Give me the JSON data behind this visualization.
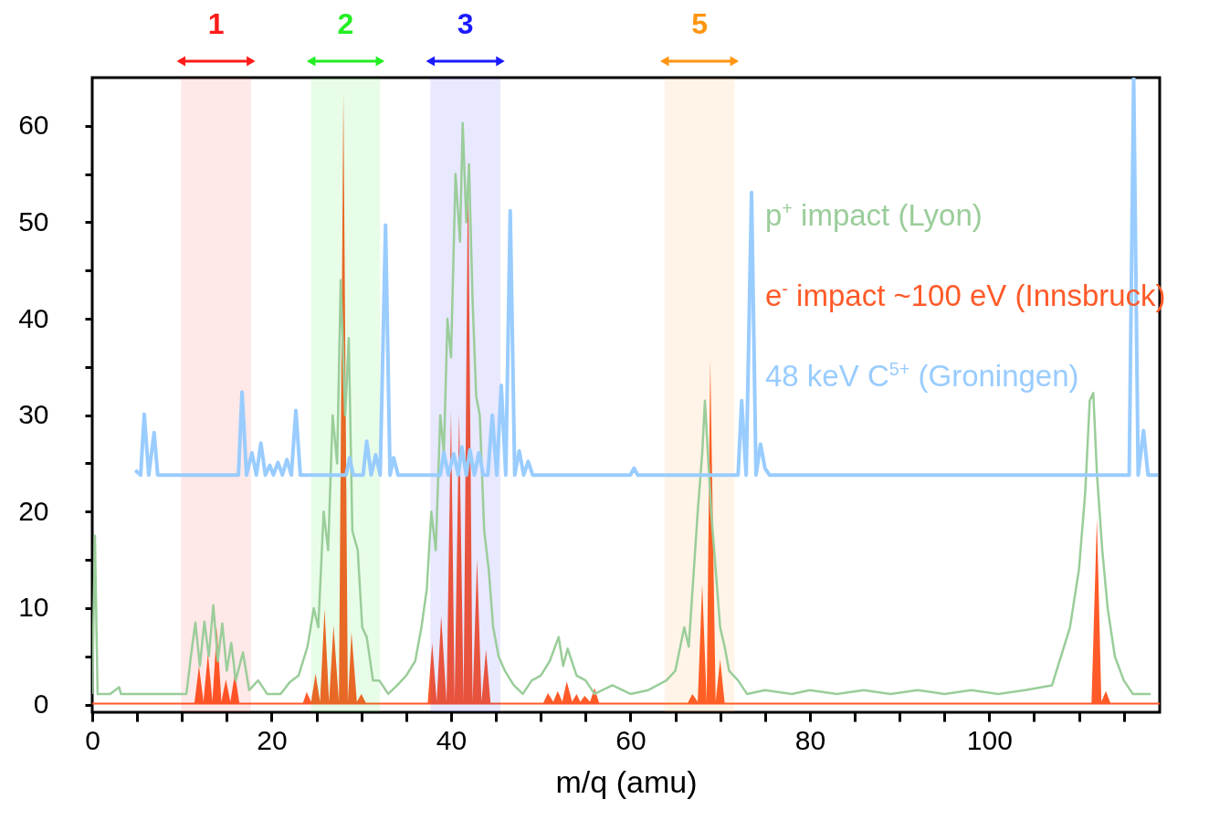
{
  "chart_data": {
    "type": "line",
    "xlabel": "m/q (amu)",
    "xlim": [
      0,
      119
    ],
    "ylim": [
      -0.8,
      65
    ],
    "xticks": [
      0,
      {
        "value": 5,
        "label": null
      },
      {
        "value": 10,
        "label": null
      },
      {
        "value": 15,
        "label": null
      },
      20,
      {
        "value": 25,
        "label": null
      },
      {
        "value": 30,
        "label": null
      },
      {
        "value": 35,
        "label": null
      },
      40,
      {
        "value": 45,
        "label": null
      },
      {
        "value": 50,
        "label": null
      },
      {
        "value": 55,
        "label": null
      },
      60,
      {
        "value": 65,
        "label": null
      },
      {
        "value": 70,
        "label": null
      },
      {
        "value": 75,
        "label": null
      },
      80,
      {
        "value": 85,
        "label": null
      },
      {
        "value": 90,
        "label": null
      },
      {
        "value": 95,
        "label": null
      },
      100,
      {
        "value": 105,
        "label": null
      },
      {
        "value": 110,
        "label": null
      },
      {
        "value": 115,
        "label": null
      }
    ],
    "yticks": [
      0,
      {
        "value": 5,
        "label": null
      },
      10,
      {
        "value": 15,
        "label": null
      },
      20,
      {
        "value": 25,
        "label": null
      },
      30,
      {
        "value": 35,
        "label": null
      },
      40,
      {
        "value": 45,
        "label": null
      },
      50,
      {
        "value": 55,
        "label": null
      },
      60
    ],
    "legend": "top right",
    "grid": false,
    "series": [
      {
        "name": "p$^{+}$ impact (Lyon)",
        "color": "#9acd9a",
        "x": [
          0,
          0.3,
          0.6,
          2,
          3,
          3.2,
          6,
          9,
          10.5,
          11,
          11.5,
          12,
          12.5,
          13,
          13.5,
          14,
          14.5,
          15,
          15.5,
          16,
          16.8,
          17.5,
          18.5,
          19.5,
          21,
          22,
          23,
          24,
          24.7,
          25.2,
          25.8,
          26.3,
          26.8,
          27.3,
          27.7,
          28.2,
          28.6,
          29,
          29.6,
          30.1,
          30.6,
          31.3,
          32,
          33,
          34,
          35,
          36,
          36.7,
          37.3,
          37.8,
          38.3,
          38.8,
          39.2,
          39.6,
          40,
          40.5,
          41,
          41.3,
          41.7,
          42,
          42.4,
          42.8,
          43.2,
          43.7,
          44.2,
          44.7,
          45.3,
          46,
          47,
          48,
          49,
          50,
          51,
          52,
          52.5,
          53,
          54,
          55,
          56,
          58,
          60,
          62,
          64,
          65,
          66,
          66.5,
          67,
          67.5,
          68,
          68.3,
          68.7,
          69,
          69.5,
          70,
          70.5,
          71,
          72,
          73,
          75,
          78,
          80,
          83,
          86,
          89,
          92,
          95,
          98,
          101,
          104,
          107,
          108,
          109,
          110,
          110.7,
          111.2,
          111.6,
          112,
          112.6,
          113.2,
          114,
          115,
          116,
          118
        ],
        "values": [
          1.1,
          17.5,
          1.1,
          1.1,
          1.8,
          1.1,
          1.1,
          1.1,
          1.1,
          5,
          8.5,
          4,
          8.6,
          5,
          10.3,
          4.5,
          8.4,
          3.5,
          6.4,
          2.5,
          5.4,
          1.5,
          2.5,
          1.1,
          1.1,
          2.3,
          3,
          6,
          10,
          8,
          20,
          16,
          30,
          25,
          44,
          30,
          38,
          18,
          16,
          8,
          7,
          2.5,
          2.5,
          1.1,
          2,
          3,
          4.5,
          8,
          12,
          20,
          16,
          30,
          26,
          40,
          36,
          55,
          48,
          60.3,
          50,
          56,
          42,
          32,
          30,
          18,
          14,
          8,
          5,
          3.5,
          2,
          1.1,
          2.5,
          3,
          4.5,
          7,
          4,
          5.8,
          3,
          2.5,
          1.1,
          2,
          1.1,
          1.5,
          2.5,
          3.5,
          8,
          6,
          13,
          20,
          26,
          31.5,
          25,
          20,
          14,
          8,
          6,
          3.5,
          2.5,
          1.1,
          1.5,
          1.1,
          1.5,
          1.1,
          1.5,
          1.1,
          1.5,
          1.1,
          1.5,
          1.1,
          1.5,
          2,
          5,
          8,
          14,
          22,
          31.5,
          32.3,
          24,
          16,
          10,
          5,
          2.5,
          1.1,
          1.1
        ]
      },
      {
        "name": "e$^{-}$ impact  ~100 eV (Innsbruck)",
        "type": "area",
        "color": "#ff5a28",
        "x": [
          0,
          11.4,
          11.9,
          12.4,
          12.9,
          13.4,
          13.9,
          14.4,
          14.9,
          15.4,
          15.9,
          16.4,
          23.5,
          23.9,
          24.4,
          24.9,
          25.4,
          25.9,
          26.4,
          26.9,
          27.5,
          28,
          28.5,
          28.9,
          29.5,
          30,
          30.5,
          37.4,
          37.9,
          38.4,
          38.9,
          39.5,
          40,
          40.4,
          40.9,
          41.4,
          41.9,
          42.4,
          42.9,
          43.4,
          43.9,
          44.4,
          50.3,
          50.8,
          51.4,
          51.9,
          52.4,
          52.9,
          53.5,
          54,
          54.4,
          54.9,
          55.5,
          56,
          56.5,
          66.4,
          66.9,
          67.5,
          68,
          68.5,
          68.9,
          69.5,
          70,
          70.5,
          111.4,
          112,
          112.5,
          113,
          113.5,
          119
        ],
        "values": [
          0.2,
          0.2,
          4,
          0.3,
          5.3,
          0.3,
          8,
          0.3,
          2.6,
          0.3,
          3.2,
          0.2,
          0.2,
          1.3,
          0.3,
          3.2,
          0.3,
          9.9,
          0.3,
          8.2,
          0.3,
          63.6,
          0.3,
          7.5,
          0.3,
          1.1,
          0.2,
          0.2,
          6.4,
          0.3,
          9.2,
          0.3,
          30.5,
          0.3,
          30.2,
          0.3,
          56.6,
          0.3,
          15.1,
          0.3,
          5.7,
          0.2,
          0.2,
          1.2,
          0.3,
          1.4,
          0.3,
          2.4,
          0.3,
          1.1,
          0.3,
          0.9,
          0.3,
          1.7,
          0.2,
          0.2,
          1.1,
          0.3,
          12.5,
          0.3,
          35.7,
          0.3,
          4.7,
          0.2,
          0.2,
          19.3,
          0.3,
          1.4,
          0.2,
          0.2
        ]
      },
      {
        "name": "48 keV C$^{5+}$ (Groningen)",
        "color": "#99ccff",
        "x": [
          4.8,
          5.4,
          5.8,
          6.3,
          6.9,
          7.3,
          16.3,
          16.7,
          17.2,
          17.8,
          18.3,
          18.8,
          19.3,
          19.8,
          20.2,
          20.7,
          21.2,
          21.7,
          22.2,
          22.7,
          23.2,
          28.3,
          28.7,
          29.1,
          30.2,
          30.6,
          31.1,
          31.6,
          32.1,
          32.7,
          33.2,
          33.6,
          34.1,
          38.8,
          39.2,
          39.7,
          40.3,
          40.8,
          41.2,
          41.7,
          42.1,
          42.6,
          43.1,
          43.6,
          44.1,
          44.6,
          45.1,
          45.6,
          46.1,
          46.6,
          47.1,
          47.6,
          48.1,
          48.6,
          49.1,
          60,
          60.4,
          60.8,
          72,
          72.4,
          72.9,
          73.5,
          74,
          74.5,
          75,
          75.5,
          115.6,
          116.1,
          116.6,
          117.2,
          117.7,
          118.8
        ],
        "values": [
          24.3,
          23.8,
          30.1,
          23.8,
          28.2,
          23.8,
          23.8,
          32.4,
          23.8,
          26.1,
          23.8,
          27.1,
          23.8,
          24.8,
          23.8,
          25.1,
          23.8,
          25.4,
          23.8,
          30.5,
          23.8,
          23.8,
          25.6,
          23.8,
          23.8,
          27.3,
          23.8,
          25.9,
          23.8,
          49.7,
          23.8,
          25.6,
          23.8,
          23.8,
          26.1,
          23.8,
          26,
          23.8,
          26.7,
          23.8,
          26.4,
          23.8,
          26.1,
          23.8,
          23.8,
          30,
          23.8,
          33.1,
          23.8,
          51.2,
          23.8,
          26.3,
          23.8,
          25.2,
          23.8,
          23.8,
          24.5,
          23.8,
          23.8,
          31.5,
          23.8,
          53.1,
          23.8,
          27,
          24.5,
          23.8,
          23.8,
          65,
          23.8,
          28.4,
          23.8,
          23.8
        ]
      }
    ],
    "bands": [
      {
        "axis": "x",
        "from": 9.9,
        "to": 17.7,
        "label": "1",
        "color": "#ff1a1a"
      },
      {
        "axis": "x",
        "from": 24.4,
        "to": 32.1,
        "label": "2",
        "color": "#22ee22"
      },
      {
        "axis": "x",
        "from": 37.7,
        "to": 45.5,
        "label": "3",
        "color": "#1a1aff"
      },
      {
        "axis": "x",
        "from": 63.8,
        "to": 71.6,
        "label": "5",
        "color": "#ff9410"
      }
    ]
  }
}
